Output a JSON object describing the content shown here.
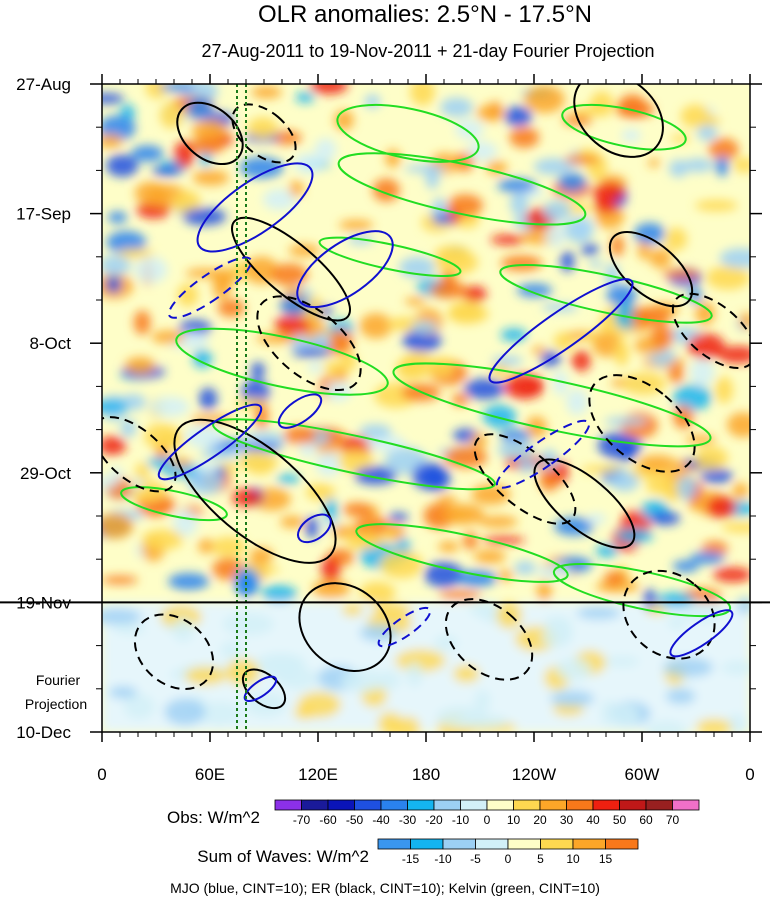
{
  "chart_data": {
    "type": "heatmap",
    "title": "OLR anomalies: 2.5°N - 17.5°N",
    "subtitle": "27-Aug-2011 to 19-Nov-2011 + 21-day Fourier Projection",
    "x_axis": {
      "ticks": [
        "0",
        "60E",
        "120E",
        "180",
        "120W",
        "60W",
        "0"
      ],
      "tick_values": [
        0,
        60,
        120,
        180,
        240,
        300,
        360
      ],
      "range": [
        0,
        360
      ],
      "unit": "degrees longitude"
    },
    "y_axis": {
      "ticks": [
        "27-Aug",
        "17-Sep",
        "8-Oct",
        "29-Oct",
        "19-Nov",
        "10-Dec"
      ],
      "tick_days": [
        0,
        21,
        42,
        63,
        84,
        105
      ],
      "range_days": [
        0,
        105
      ],
      "minor_interval_days": 7
    },
    "projection_start_day": 84,
    "projection_label_line1": "Fourier",
    "projection_label_line2": "Projection",
    "vertical_reference_lines_lon": [
      75,
      80
    ],
    "colors": {
      "mjo": "#1010d0",
      "er": "#000000",
      "kelvin": "#22dd22",
      "ref_line": "#1a7a1a"
    },
    "obs_colorbar": {
      "label": "Obs: W/m^2",
      "levels": [
        "-70",
        "-60",
        "-50",
        "-40",
        "-30",
        "-20",
        "-10",
        "0",
        "10",
        "20",
        "30",
        "40",
        "50",
        "60",
        "70"
      ],
      "colors": [
        "#8c30e8",
        "#1a1a9a",
        "#0a14b8",
        "#1e50e0",
        "#2a82ee",
        "#14b4f0",
        "#9cd0f4",
        "#d2f0f8",
        "#fefec8",
        "#fed850",
        "#fca628",
        "#f8781a",
        "#ee2010",
        "#c01818",
        "#982020",
        "#f070c8"
      ]
    },
    "wave_colorbar": {
      "label": "Sum of Waves: W/m^2",
      "levels": [
        "-15",
        "-10",
        "-5",
        "0",
        "5",
        "10",
        "15"
      ],
      "colors": [
        "#3a96ee",
        "#14b4f0",
        "#9cd0f4",
        "#d2f0f8",
        "#fefec8",
        "#fed850",
        "#fca628",
        "#f8781a"
      ]
    },
    "footer": "MJO (blue, CINT=10); ER (black, CINT=10); Kelvin (green, CINT=10)",
    "contours": {
      "mjo": [
        {
          "lon": 85,
          "day": 20,
          "lon_half": 14,
          "day_half": 11,
          "dashed": false
        },
        {
          "lon": 135,
          "day": 30,
          "lon_half": 14,
          "day_half": 9,
          "dashed": false
        },
        {
          "lon": 255,
          "day": 40,
          "lon_half": 10,
          "day_half": 14,
          "dashed": false
        },
        {
          "lon": 60,
          "day": 58,
          "lon_half": 8,
          "day_half": 10,
          "dashed": false
        },
        {
          "lon": 118,
          "day": 72,
          "lon_half": 6,
          "day_half": 3,
          "dashed": false
        },
        {
          "lon": 110,
          "day": 53,
          "lon_half": 6,
          "day_half": 4,
          "dashed": false
        },
        {
          "lon": 245,
          "day": 60,
          "lon_half": 7,
          "day_half": 9,
          "dashed": true
        },
        {
          "lon": 60,
          "day": 33,
          "lon_half": 7,
          "day_half": 8,
          "dashed": true
        },
        {
          "lon": 168,
          "day": 88,
          "lon_half": 5,
          "day_half": 5,
          "dashed": true
        },
        {
          "lon": 333,
          "day": 89,
          "lon_half": 6,
          "day_half": 6,
          "dashed": false
        },
        {
          "lon": 88,
          "day": 98,
          "lon_half": 4,
          "day_half": 3,
          "dashed": false
        }
      ],
      "er": [
        {
          "lon": 60,
          "day": 8,
          "lon_half": 14,
          "day_half": 6,
          "dashed": false
        },
        {
          "lon": 287,
          "day": 5,
          "lon_half": 20,
          "day_half": 8,
          "dashed": false
        },
        {
          "lon": 105,
          "day": 30,
          "lon_half": 14,
          "day_half": 12,
          "dashed": false
        },
        {
          "lon": 115,
          "day": 42,
          "lon_half": 18,
          "day_half": 10,
          "dashed": true
        },
        {
          "lon": 85,
          "day": 66,
          "lon_half": 24,
          "day_half": 16,
          "dashed": false
        },
        {
          "lon": 235,
          "day": 64,
          "lon_half": 15,
          "day_half": 10,
          "dashed": true
        },
        {
          "lon": 268,
          "day": 68,
          "lon_half": 14,
          "day_half": 10,
          "dashed": false
        },
        {
          "lon": 300,
          "day": 55,
          "lon_half": 20,
          "day_half": 10,
          "dashed": true
        },
        {
          "lon": 18,
          "day": 60,
          "lon_half": 14,
          "day_half": 8,
          "dashed": true
        },
        {
          "lon": 40,
          "day": 92,
          "lon_half": 18,
          "day_half": 7,
          "dashed": true
        },
        {
          "lon": 135,
          "day": 88,
          "lon_half": 22,
          "day_half": 8,
          "dashed": false
        },
        {
          "lon": 215,
          "day": 90,
          "lon_half": 18,
          "day_half": 8,
          "dashed": true
        },
        {
          "lon": 315,
          "day": 86,
          "lon_half": 22,
          "day_half": 8,
          "dashed": true
        },
        {
          "lon": 90,
          "day": 8,
          "lon_half": 12,
          "day_half": 6,
          "dashed": true
        },
        {
          "lon": 305,
          "day": 30,
          "lon_half": 14,
          "day_half": 8,
          "dashed": false
        },
        {
          "lon": 340,
          "day": 40,
          "lon_half": 14,
          "day_half": 8,
          "dashed": true
        },
        {
          "lon": 90,
          "day": 98,
          "lon_half": 8,
          "day_half": 4,
          "dashed": false
        }
      ],
      "kelvin": [
        {
          "lon": 170,
          "day": 8,
          "lon_half": 40,
          "day_half": 4
        },
        {
          "lon": 290,
          "day": 7,
          "lon_half": 35,
          "day_half": 3
        },
        {
          "lon": 200,
          "day": 17,
          "lon_half": 70,
          "day_half": 4
        },
        {
          "lon": 160,
          "day": 28,
          "lon_half": 40,
          "day_half": 2
        },
        {
          "lon": 280,
          "day": 34,
          "lon_half": 60,
          "day_half": 3
        },
        {
          "lon": 100,
          "day": 45,
          "lon_half": 60,
          "day_half": 4
        },
        {
          "lon": 250,
          "day": 52,
          "lon_half": 90,
          "day_half": 4
        },
        {
          "lon": 140,
          "day": 60,
          "lon_half": 80,
          "day_half": 3
        },
        {
          "lon": 40,
          "day": 68,
          "lon_half": 30,
          "day_half": 2
        },
        {
          "lon": 200,
          "day": 76,
          "lon_half": 60,
          "day_half": 3
        },
        {
          "lon": 300,
          "day": 82,
          "lon_half": 50,
          "day_half": 3
        }
      ]
    }
  }
}
